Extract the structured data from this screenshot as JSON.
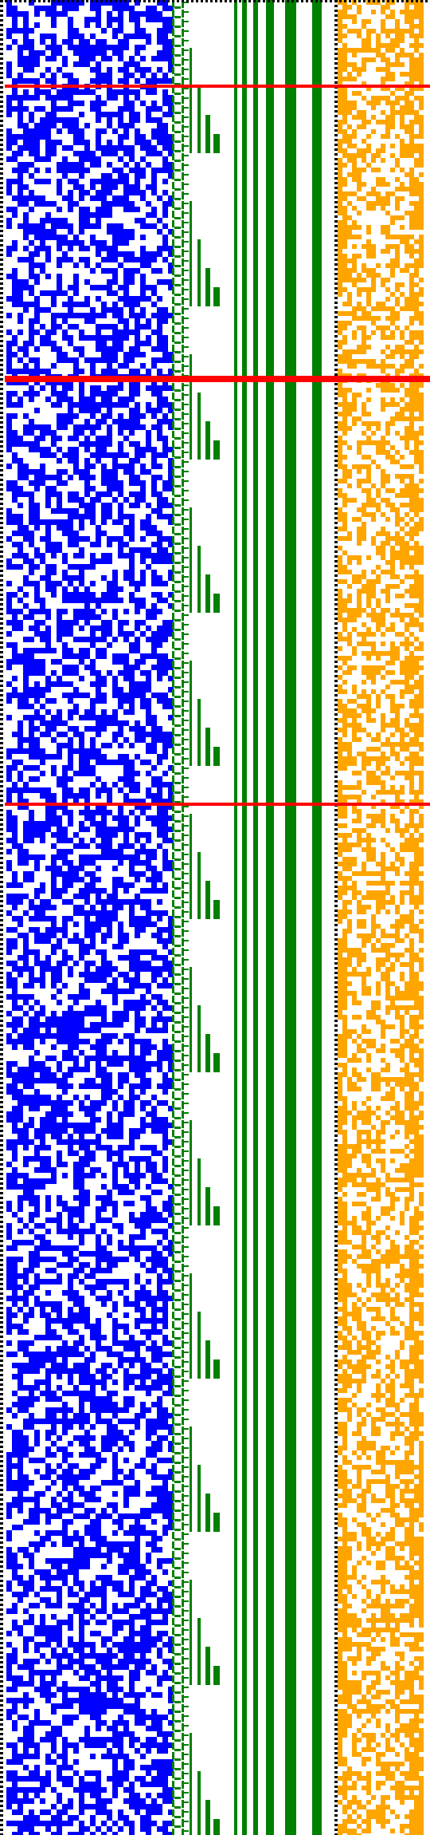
{
  "visualization": {
    "kind": "binary-pattern-raster",
    "palette": {
      "background": "#ffffff",
      "blue_cells": "#0000ff",
      "green_cells": "#008000",
      "orange_cells": "#ffa500",
      "highlight_rules": "#ff0000",
      "dotted_rules": "#000000"
    },
    "regions": [
      {
        "name": "blue-noise-band",
        "color": "#0000ff"
      },
      {
        "name": "green-comb-band",
        "color": "#008000"
      },
      {
        "name": "green-bars-band",
        "color": "#008000"
      },
      {
        "name": "orange-noise-band",
        "color": "#ffa500"
      }
    ],
    "highlight_rule_count": 3,
    "dotted_rule_count": 2
  }
}
